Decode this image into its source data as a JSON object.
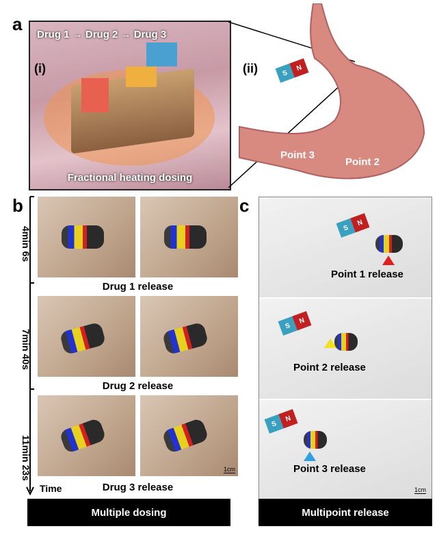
{
  "panel_a": {
    "label": "a",
    "sub_i": "(i)",
    "sub_ii": "(ii)",
    "drug1": "Drug 1",
    "drug2": "Drug 2",
    "drug3": "Drug 3",
    "arrow": "→",
    "caption": "Fractional heating dosing",
    "point2": "Point 2",
    "point3": "Point 3",
    "magnet_s": "S",
    "magnet_n": "N"
  },
  "panel_b": {
    "label": "b",
    "releases": [
      "Drug 1 release",
      "Drug 2 release",
      "Drug 3 release"
    ],
    "times": [
      "4min 6s",
      "7min 40s",
      "11min 23s"
    ],
    "time_label": "Time",
    "scale": "1cm",
    "bar": "Multiple dosing"
  },
  "panel_c": {
    "label": "c",
    "releases": [
      "Point 1 release",
      "Point 2 release",
      "Point 3 release"
    ],
    "marker_colors": [
      "#e02020",
      "#f0e020",
      "#30a0e0"
    ],
    "scale": "1cm",
    "bar": "Multipoint release",
    "magnet_s": "S",
    "magnet_n": "N"
  }
}
